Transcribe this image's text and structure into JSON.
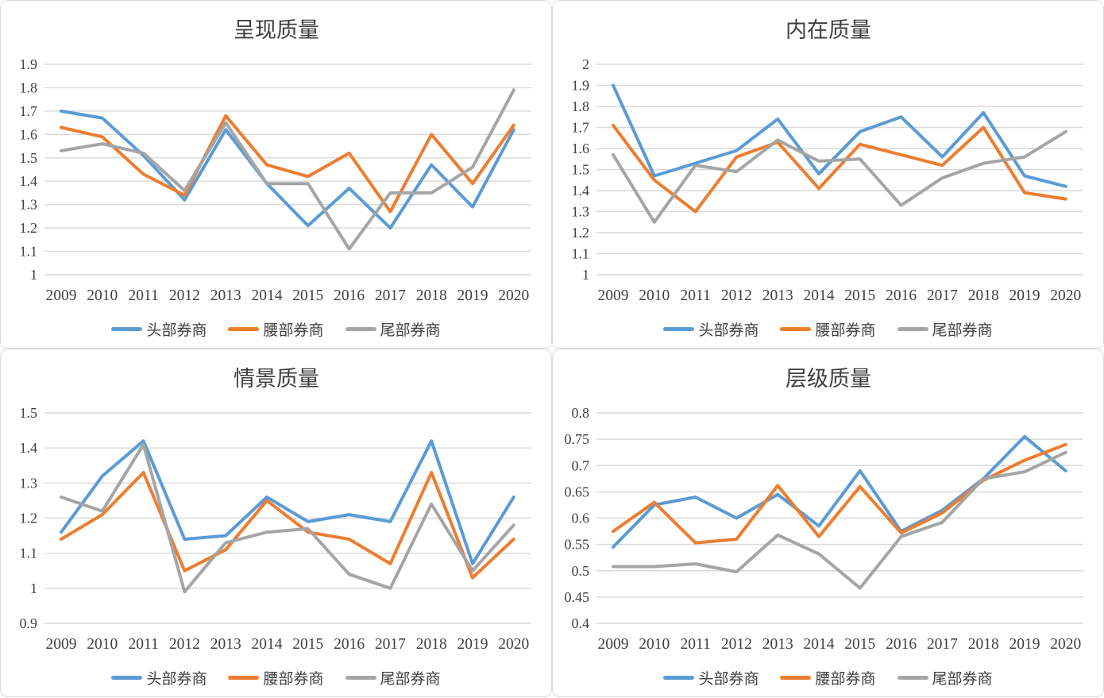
{
  "colors": {
    "head": "#5B9BD5",
    "waist": "#ED7D31",
    "tail": "#A5A5A5",
    "gridline": "#D9D9D9",
    "tick_text": "#404040",
    "title_text": "#3F3F3F"
  },
  "years": [
    "2009",
    "2010",
    "2011",
    "2012",
    "2013",
    "2014",
    "2015",
    "2016",
    "2017",
    "2018",
    "2019",
    "2020"
  ],
  "legend": [
    {
      "key": "head",
      "label": "头部券商"
    },
    {
      "key": "waist",
      "label": "腰部券商"
    },
    {
      "key": "tail",
      "label": "尾部券商"
    }
  ],
  "chart_data": [
    {
      "id": "presentation-quality",
      "type": "line",
      "title": "呈现质量",
      "xlabel": "",
      "ylabel": "",
      "ylim": [
        1.0,
        1.9
      ],
      "grid": true,
      "legend_position": "bottom",
      "ytick_labels": [
        "1.9",
        "1.8",
        "1.7",
        "1.6",
        "1.5",
        "1.4",
        "1.3",
        "1.2",
        "1.1",
        "1"
      ],
      "categories": [
        "2009",
        "2010",
        "2011",
        "2012",
        "2013",
        "2014",
        "2015",
        "2016",
        "2017",
        "2018",
        "2019",
        "2020"
      ],
      "series": [
        {
          "name": "头部券商",
          "color_key": "head",
          "values": [
            1.7,
            1.67,
            1.51,
            1.32,
            1.62,
            1.39,
            1.21,
            1.37,
            1.2,
            1.47,
            1.29,
            1.62
          ]
        },
        {
          "name": "腰部券商",
          "color_key": "waist",
          "values": [
            1.63,
            1.59,
            1.43,
            1.34,
            1.68,
            1.47,
            1.42,
            1.52,
            1.27,
            1.6,
            1.39,
            1.64
          ]
        },
        {
          "name": "尾部券商",
          "color_key": "tail",
          "values": [
            1.53,
            1.56,
            1.52,
            1.36,
            1.65,
            1.39,
            1.39,
            1.11,
            1.35,
            1.35,
            1.46,
            1.79
          ]
        }
      ]
    },
    {
      "id": "intrinsic-quality",
      "type": "line",
      "title": "内在质量",
      "xlabel": "",
      "ylabel": "",
      "ylim": [
        1.0,
        2.0
      ],
      "grid": true,
      "legend_position": "bottom",
      "ytick_labels": [
        "2",
        "1.9",
        "1.8",
        "1.7",
        "1.6",
        "1.5",
        "1.4",
        "1.3",
        "1.2",
        "1.1",
        "1"
      ],
      "categories": [
        "2009",
        "2010",
        "2011",
        "2012",
        "2013",
        "2014",
        "2015",
        "2016",
        "2017",
        "2018",
        "2019",
        "2020"
      ],
      "series": [
        {
          "name": "头部券商",
          "color_key": "head",
          "values": [
            1.9,
            1.47,
            1.53,
            1.59,
            1.74,
            1.48,
            1.68,
            1.75,
            1.56,
            1.77,
            1.47,
            1.42
          ]
        },
        {
          "name": "腰部券商",
          "color_key": "waist",
          "values": [
            1.71,
            1.45,
            1.3,
            1.56,
            1.63,
            1.41,
            1.62,
            1.57,
            1.52,
            1.7,
            1.39,
            1.36
          ]
        },
        {
          "name": "尾部券商",
          "color_key": "tail",
          "values": [
            1.57,
            1.25,
            1.52,
            1.49,
            1.64,
            1.54,
            1.55,
            1.33,
            1.46,
            1.53,
            1.56,
            1.68
          ]
        }
      ]
    },
    {
      "id": "scenario-quality",
      "type": "line",
      "title": "情景质量",
      "xlabel": "",
      "ylabel": "",
      "ylim": [
        0.9,
        1.5
      ],
      "grid": true,
      "legend_position": "bottom",
      "ytick_labels": [
        "1.5",
        "1.4",
        "1.3",
        "1.2",
        "1.1",
        "1",
        "0.9"
      ],
      "categories": [
        "2009",
        "2010",
        "2011",
        "2012",
        "2013",
        "2014",
        "2015",
        "2016",
        "2017",
        "2018",
        "2019",
        "2020"
      ],
      "series": [
        {
          "name": "头部券商",
          "color_key": "head",
          "values": [
            1.16,
            1.32,
            1.42,
            1.14,
            1.15,
            1.26,
            1.19,
            1.21,
            1.19,
            1.42,
            1.07,
            1.26
          ]
        },
        {
          "name": "腰部券商",
          "color_key": "waist",
          "values": [
            1.14,
            1.21,
            1.33,
            1.05,
            1.11,
            1.25,
            1.16,
            1.14,
            1.07,
            1.33,
            1.03,
            1.14
          ]
        },
        {
          "name": "尾部券商",
          "color_key": "tail",
          "values": [
            1.26,
            1.22,
            1.41,
            0.99,
            1.13,
            1.16,
            1.17,
            1.04,
            1.0,
            1.24,
            1.05,
            1.18
          ]
        }
      ]
    },
    {
      "id": "hierarchy-quality",
      "type": "line",
      "title": "层级质量",
      "xlabel": "",
      "ylabel": "",
      "ylim": [
        0.4,
        0.8
      ],
      "grid": true,
      "legend_position": "bottom",
      "ytick_labels": [
        "0.8",
        "0.75",
        "0.7",
        "0.65",
        "0.6",
        "0.55",
        "0.5",
        "0.45",
        "0.4"
      ],
      "categories": [
        "2009",
        "2010",
        "2011",
        "2012",
        "2013",
        "2014",
        "2015",
        "2016",
        "2017",
        "2018",
        "2019",
        "2020"
      ],
      "series": [
        {
          "name": "头部券商",
          "color_key": "head",
          "values": [
            0.545,
            0.625,
            0.64,
            0.6,
            0.645,
            0.585,
            0.69,
            0.575,
            0.615,
            0.675,
            0.755,
            0.69
          ]
        },
        {
          "name": "腰部券商",
          "color_key": "waist",
          "values": [
            0.575,
            0.63,
            0.553,
            0.56,
            0.662,
            0.565,
            0.66,
            0.572,
            0.61,
            0.672,
            0.71,
            0.74
          ]
        },
        {
          "name": "尾部券商",
          "color_key": "tail",
          "values": [
            0.508,
            0.508,
            0.513,
            0.498,
            0.568,
            0.532,
            0.467,
            0.565,
            0.592,
            0.675,
            0.688,
            0.725
          ]
        }
      ]
    }
  ]
}
